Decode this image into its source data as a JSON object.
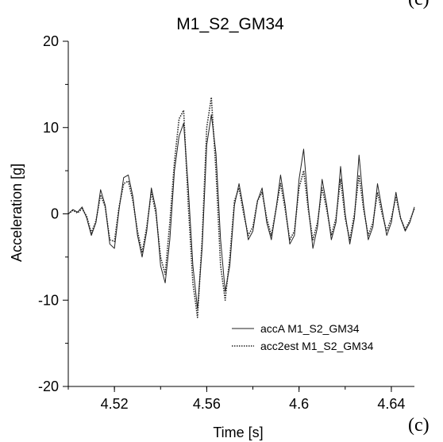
{
  "panel_label": "(c)",
  "chart_data": {
    "type": "line",
    "title": "M1_S2_GM34",
    "xlabel": "Time [s]",
    "ylabel": "Acceleration [g]",
    "xlim": [
      4.5,
      4.65
    ],
    "ylim": [
      -20,
      20
    ],
    "x_ticks": [
      4.52,
      4.56,
      4.6,
      4.64
    ],
    "x_tick_labels": [
      "4.52",
      "4.56",
      "4.6",
      "4.64"
    ],
    "y_ticks": [
      -20,
      -10,
      0,
      10,
      20
    ],
    "y_tick_labels": [
      "-20",
      "-10",
      "0",
      "10",
      "20"
    ],
    "grid": false,
    "legend_position": "bottom-right",
    "series": [
      {
        "name": "accA M1_S2_GM34",
        "style": "solid",
        "color": "#222222",
        "points": [
          [
            4.5,
            0
          ],
          [
            4.502,
            0.5
          ],
          [
            4.504,
            0.2
          ],
          [
            4.506,
            0.8
          ],
          [
            4.508,
            -0.5
          ],
          [
            4.51,
            -2.5
          ],
          [
            4.512,
            -1
          ],
          [
            4.514,
            2.8
          ],
          [
            4.516,
            1
          ],
          [
            4.518,
            -3.5
          ],
          [
            4.52,
            -4
          ],
          [
            4.522,
            0.5
          ],
          [
            4.524,
            4.2
          ],
          [
            4.526,
            4.5
          ],
          [
            4.528,
            2
          ],
          [
            4.53,
            -2.5
          ],
          [
            4.532,
            -5
          ],
          [
            4.534,
            -2
          ],
          [
            4.536,
            3
          ],
          [
            4.538,
            0.5
          ],
          [
            4.54,
            -6
          ],
          [
            4.542,
            -8
          ],
          [
            4.544,
            -3
          ],
          [
            4.546,
            5
          ],
          [
            4.548,
            9
          ],
          [
            4.55,
            10.5
          ],
          [
            4.552,
            3
          ],
          [
            4.554,
            -6
          ],
          [
            4.556,
            -11
          ],
          [
            4.558,
            -4
          ],
          [
            4.56,
            8
          ],
          [
            4.562,
            11.5
          ],
          [
            4.564,
            7
          ],
          [
            4.566,
            -3
          ],
          [
            4.568,
            -9
          ],
          [
            4.57,
            -6
          ],
          [
            4.572,
            1
          ],
          [
            4.574,
            3.5
          ],
          [
            4.576,
            0.5
          ],
          [
            4.578,
            -3
          ],
          [
            4.58,
            -2
          ],
          [
            4.582,
            1.5
          ],
          [
            4.584,
            3
          ],
          [
            4.586,
            -1
          ],
          [
            4.588,
            -3
          ],
          [
            4.59,
            0.5
          ],
          [
            4.592,
            4.5
          ],
          [
            4.594,
            1
          ],
          [
            4.596,
            -3.5
          ],
          [
            4.598,
            -2.5
          ],
          [
            4.6,
            4
          ],
          [
            4.602,
            7.5
          ],
          [
            4.604,
            1
          ],
          [
            4.606,
            -4
          ],
          [
            4.608,
            -1.5
          ],
          [
            4.61,
            4
          ],
          [
            4.612,
            1
          ],
          [
            4.614,
            -3
          ],
          [
            4.616,
            -1
          ],
          [
            4.618,
            5.5
          ],
          [
            4.62,
            0
          ],
          [
            4.622,
            -3.5
          ],
          [
            4.624,
            -0.5
          ],
          [
            4.626,
            6.8
          ],
          [
            4.628,
            1
          ],
          [
            4.63,
            -3
          ],
          [
            4.632,
            -1.5
          ],
          [
            4.634,
            3.5
          ],
          [
            4.636,
            0.5
          ],
          [
            4.638,
            -2.5
          ],
          [
            4.64,
            -1
          ],
          [
            4.642,
            2.5
          ],
          [
            4.644,
            -0.5
          ],
          [
            4.646,
            -2
          ],
          [
            4.648,
            -1
          ],
          [
            4.65,
            0.8
          ]
        ]
      },
      {
        "name": "acc2est M1_S2_GM34",
        "style": "dotted",
        "color": "#222222",
        "points": [
          [
            4.5,
            0
          ],
          [
            4.502,
            0.4
          ],
          [
            4.504,
            0.1
          ],
          [
            4.506,
            0.6
          ],
          [
            4.508,
            -0.3
          ],
          [
            4.51,
            -2.2
          ],
          [
            4.512,
            -0.8
          ],
          [
            4.514,
            2.2
          ],
          [
            4.516,
            0.8
          ],
          [
            4.518,
            -3
          ],
          [
            4.52,
            -3.2
          ],
          [
            4.522,
            0.8
          ],
          [
            4.524,
            3.5
          ],
          [
            4.526,
            3.8
          ],
          [
            4.528,
            1.5
          ],
          [
            4.53,
            -2
          ],
          [
            4.532,
            -4.5
          ],
          [
            4.534,
            -1.5
          ],
          [
            4.536,
            2.5
          ],
          [
            4.538,
            0
          ],
          [
            4.54,
            -5
          ],
          [
            4.542,
            -7
          ],
          [
            4.544,
            -1
          ],
          [
            4.546,
            6
          ],
          [
            4.548,
            11
          ],
          [
            4.55,
            12
          ],
          [
            4.552,
            1
          ],
          [
            4.554,
            -8
          ],
          [
            4.556,
            -12
          ],
          [
            4.558,
            -3
          ],
          [
            4.56,
            10
          ],
          [
            4.562,
            13.5
          ],
          [
            4.564,
            5
          ],
          [
            4.566,
            -6
          ],
          [
            4.568,
            -10
          ],
          [
            4.57,
            -5
          ],
          [
            4.572,
            1.5
          ],
          [
            4.574,
            3
          ],
          [
            4.576,
            0
          ],
          [
            4.578,
            -2.5
          ],
          [
            4.58,
            -1.5
          ],
          [
            4.582,
            1.5
          ],
          [
            4.584,
            2.5
          ],
          [
            4.586,
            -0.5
          ],
          [
            4.588,
            -2.5
          ],
          [
            4.59,
            0.5
          ],
          [
            4.592,
            3.5
          ],
          [
            4.594,
            0.5
          ],
          [
            4.596,
            -3
          ],
          [
            4.598,
            -2
          ],
          [
            4.6,
            3
          ],
          [
            4.602,
            5
          ],
          [
            4.604,
            0.5
          ],
          [
            4.606,
            -3
          ],
          [
            4.608,
            -1
          ],
          [
            4.61,
            3
          ],
          [
            4.612,
            0.5
          ],
          [
            4.614,
            -2.5
          ],
          [
            4.616,
            -0.5
          ],
          [
            4.618,
            4
          ],
          [
            4.62,
            -0.5
          ],
          [
            4.622,
            -3
          ],
          [
            4.624,
            0
          ],
          [
            4.626,
            4.5
          ],
          [
            4.628,
            0.5
          ],
          [
            4.63,
            -2.5
          ],
          [
            4.632,
            -1
          ],
          [
            4.634,
            2.5
          ],
          [
            4.636,
            0
          ],
          [
            4.638,
            -2
          ],
          [
            4.64,
            -0.5
          ],
          [
            4.642,
            2
          ],
          [
            4.644,
            -0.5
          ],
          [
            4.646,
            -1.8
          ],
          [
            4.648,
            -0.8
          ],
          [
            4.65,
            0.6
          ]
        ]
      }
    ]
  }
}
